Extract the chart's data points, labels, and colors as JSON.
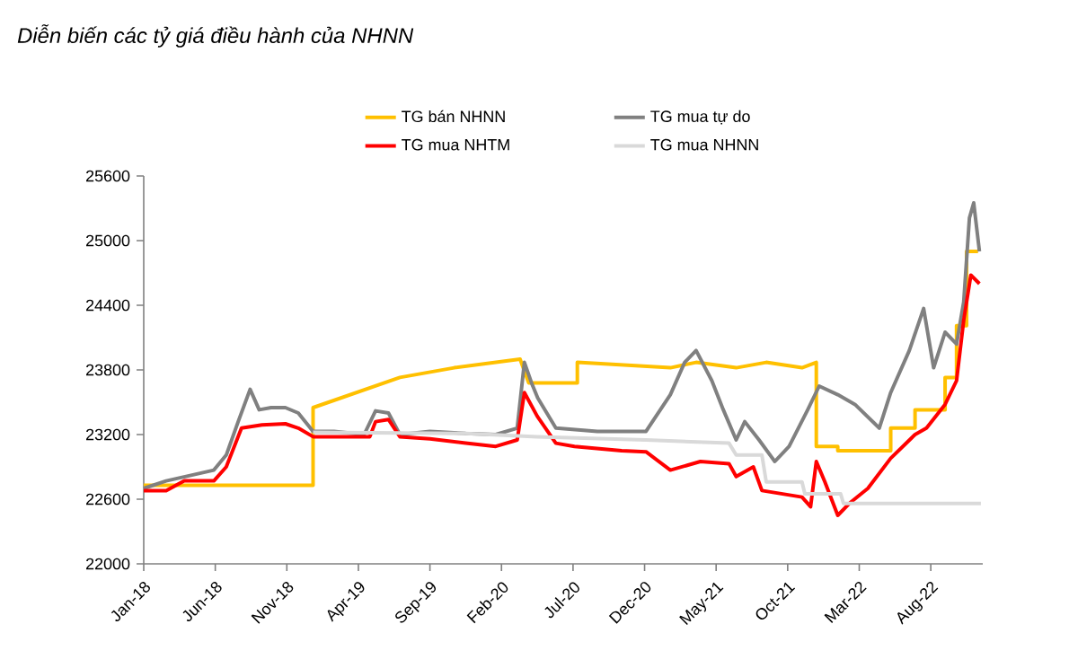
{
  "chart_data": {
    "type": "line",
    "title": "Diễn biến các tỷ giá điều hành của NHNN",
    "legend": "top",
    "xlim": [
      "2018-01-01",
      "2022-11-20"
    ],
    "xticks": [
      {
        "value": "2018-01",
        "label": "Jan-18"
      },
      {
        "value": "2018-06",
        "label": "Jun-18"
      },
      {
        "value": "2018-11",
        "label": "Nov-18"
      },
      {
        "value": "2019-04",
        "label": "Apr-19"
      },
      {
        "value": "2019-09",
        "label": "Sep-19"
      },
      {
        "value": "2020-02",
        "label": "Feb-20"
      },
      {
        "value": "2020-07",
        "label": "Jul-20"
      },
      {
        "value": "2020-12",
        "label": "Dec-20"
      },
      {
        "value": "2021-05",
        "label": "May-21"
      },
      {
        "value": "2021-10",
        "label": "Oct-21"
      },
      {
        "value": "2022-03",
        "label": "Mar-22"
      },
      {
        "value": "2022-08",
        "label": "Aug-22"
      }
    ],
    "ylim": [
      22000,
      25600
    ],
    "yticks": [
      22000,
      22600,
      23200,
      23800,
      24400,
      25000,
      25600
    ],
    "series": [
      {
        "name": "TG bán NHNN",
        "color": "#ffc000",
        "x": [
          "2018-01-01",
          "2018-12-26",
          "2018-12-26",
          "2019-06-28",
          "2019-10-22",
          "2020-03-10",
          "2020-03-28",
          "2020-07-10",
          "2020-07-10",
          "2021-01-25",
          "2021-03-19",
          "2021-06-13",
          "2021-08-16",
          "2021-11-01",
          "2021-12-01",
          "2021-12-01",
          "2022-01-16",
          "2022-01-16",
          "2022-05-07",
          "2022-05-07",
          "2022-06-28",
          "2022-06-28",
          "2022-09-01",
          "2022-09-01",
          "2022-09-25",
          "2022-09-25",
          "2022-10-16",
          "2022-10-16",
          "2022-11-10"
        ],
        "values": [
          22730,
          22730,
          23450,
          23730,
          23820,
          23900,
          23680,
          23680,
          23870,
          23820,
          23870,
          23820,
          23870,
          23820,
          23870,
          23090,
          23090,
          23050,
          23050,
          23260,
          23260,
          23430,
          23430,
          23730,
          23730,
          24210,
          24210,
          24900,
          24900
        ]
      },
      {
        "name": "TG mua tự do",
        "color": "#808080",
        "x": [
          "2018-01-01",
          "2018-02-18",
          "2018-05-28",
          "2018-06-24",
          "2018-07-19",
          "2018-08-14",
          "2018-09-03",
          "2018-09-28",
          "2018-10-28",
          "2018-11-25",
          "2018-12-26",
          "2019-02-10",
          "2019-04-13",
          "2019-05-07",
          "2019-06-04",
          "2019-06-28",
          "2019-09-01",
          "2019-11-16",
          "2020-01-19",
          "2020-03-04",
          "2020-03-19",
          "2020-04-04",
          "2020-04-17",
          "2020-05-25",
          "2020-08-22",
          "2020-10-25",
          "2020-12-04",
          "2021-01-25",
          "2021-02-25",
          "2021-03-19",
          "2021-04-22",
          "2021-05-16",
          "2021-06-13",
          "2021-07-01",
          "2021-08-01",
          "2021-09-04",
          "2021-10-04",
          "2021-11-13",
          "2021-12-07",
          "2022-01-16",
          "2022-02-22",
          "2022-04-13",
          "2022-05-07",
          "2022-06-16",
          "2022-07-16",
          "2022-08-07",
          "2022-09-01",
          "2022-09-25",
          "2022-10-10",
          "2022-10-22",
          "2022-11-01",
          "2022-11-13"
        ],
        "values": [
          22700,
          22770,
          22870,
          23010,
          23320,
          23620,
          23430,
          23450,
          23450,
          23400,
          23230,
          23230,
          23200,
          23420,
          23400,
          23200,
          23230,
          23210,
          23200,
          23260,
          23870,
          23680,
          23540,
          23260,
          23230,
          23230,
          23230,
          23570,
          23870,
          23980,
          23700,
          23430,
          23150,
          23320,
          23150,
          22950,
          23090,
          23430,
          23650,
          23570,
          23480,
          23260,
          23590,
          23980,
          24370,
          23820,
          24150,
          24040,
          24430,
          25210,
          25350,
          24900
        ]
      },
      {
        "name": "TG mua NHTM",
        "color": "#ff0000",
        "x": [
          "2018-01-01",
          "2018-02-18",
          "2018-03-26",
          "2018-05-28",
          "2018-06-24",
          "2018-07-26",
          "2018-09-09",
          "2018-10-28",
          "2018-11-25",
          "2018-12-26",
          "2019-04-25",
          "2019-05-07",
          "2019-06-04",
          "2019-06-28",
          "2019-09-01",
          "2019-11-16",
          "2020-01-19",
          "2020-03-04",
          "2020-03-19",
          "2020-04-16",
          "2020-05-25",
          "2020-07-04",
          "2020-10-13",
          "2020-12-04",
          "2021-01-25",
          "2021-03-28",
          "2021-05-28",
          "2021-06-13",
          "2021-07-19",
          "2021-08-07",
          "2021-11-01",
          "2021-11-19",
          "2021-12-01",
          "2021-12-19",
          "2022-01-16",
          "2022-02-10",
          "2022-03-19",
          "2022-05-07",
          "2022-06-28",
          "2022-07-22",
          "2022-09-01",
          "2022-09-25",
          "2022-10-10",
          "2022-10-25",
          "2022-11-13"
        ],
        "values": [
          22680,
          22680,
          22770,
          22770,
          22900,
          23260,
          23290,
          23300,
          23260,
          23180,
          23180,
          23320,
          23340,
          23180,
          23160,
          23120,
          23090,
          23150,
          23590,
          23370,
          23120,
          23090,
          23050,
          23040,
          22870,
          22950,
          22930,
          22810,
          22900,
          22680,
          22620,
          22530,
          22950,
          22760,
          22450,
          22560,
          22700,
          22980,
          23200,
          23260,
          23480,
          23700,
          24260,
          24680,
          24600
        ]
      },
      {
        "name": "TG mua NHNN",
        "color": "#d9d9d9",
        "x": [
          "2018-12-26",
          "2019-11-16",
          "2020-04-16",
          "2020-12-04",
          "2021-05-28",
          "2021-06-13",
          "2021-08-07",
          "2021-08-16",
          "2021-11-01",
          "2021-11-07",
          "2022-01-22",
          "2022-01-28",
          "2022-11-16"
        ],
        "values": [
          23220,
          23210,
          23180,
          23150,
          23120,
          23010,
          23010,
          22760,
          22760,
          22650,
          22650,
          22560,
          22560
        ]
      }
    ]
  }
}
